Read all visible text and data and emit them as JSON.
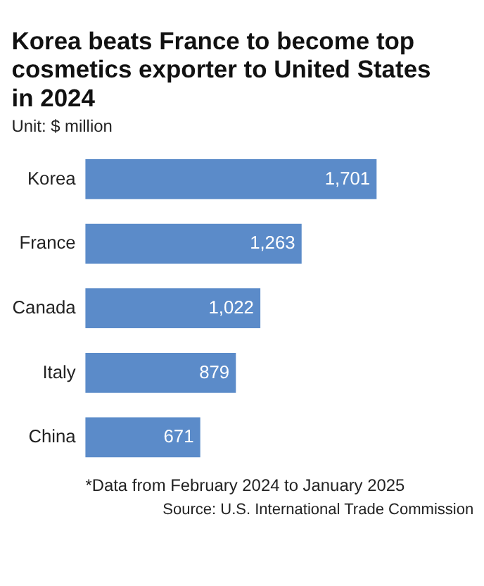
{
  "chart_data": {
    "type": "bar",
    "orientation": "horizontal",
    "title": "Korea beats France to become top cosmetics exporter to United States in 2024",
    "subtitle": "Unit: $ million",
    "categories": [
      "Korea",
      "France",
      "Canada",
      "Italy",
      "China"
    ],
    "values": [
      1701,
      1263,
      1022,
      879,
      671
    ],
    "color": "#5b8bc9",
    "value_labels": [
      "1,701",
      "1,263",
      "1,022",
      "879",
      "671"
    ],
    "annotations": [
      "*Data from February 2024 to January 2025",
      "Source: U.S. International Trade Commission"
    ]
  }
}
